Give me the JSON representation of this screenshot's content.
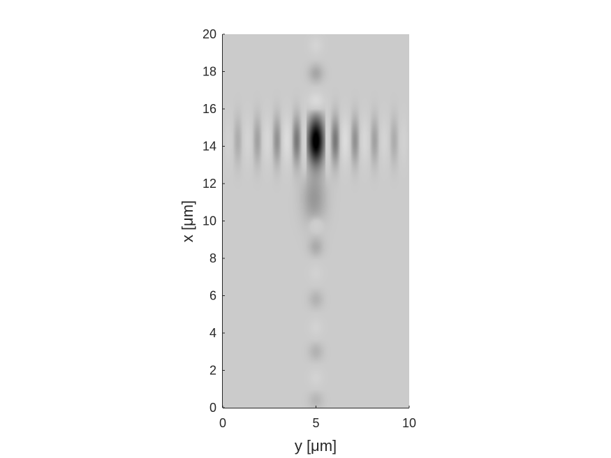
{
  "chart_data": {
    "type": "heatmap",
    "title": "",
    "xlabel": "y [μm]",
    "ylabel": "x [μm]",
    "xlim": [
      0,
      10
    ],
    "ylim": [
      0,
      20
    ],
    "x_ticks": [
      "0",
      "5",
      "10"
    ],
    "y_ticks": [
      "0",
      "2",
      "4",
      "6",
      "8",
      "10",
      "12",
      "14",
      "16",
      "18",
      "20"
    ],
    "colormap": "gray",
    "background_color": "#cbcbcb",
    "features": [
      {
        "y": 5.0,
        "x": 14.3,
        "sy": 0.35,
        "sx": 0.9,
        "value": -1.0
      },
      {
        "y": 4.9,
        "x": 11.2,
        "sy": 0.45,
        "sx": 1.0,
        "value": -0.25
      },
      {
        "y": 5.0,
        "x": 16.4,
        "sy": 0.3,
        "sx": 0.35,
        "value": 0.35
      },
      {
        "y": 5.0,
        "x": 17.9,
        "sy": 0.28,
        "sx": 0.35,
        "value": -0.18
      },
      {
        "y": 5.0,
        "x": 19.4,
        "sy": 0.28,
        "sx": 0.35,
        "value": 0.18
      },
      {
        "y": 5.0,
        "x": 9.8,
        "sy": 0.25,
        "sx": 0.3,
        "value": 0.15
      },
      {
        "y": 5.0,
        "x": 8.6,
        "sy": 0.28,
        "sx": 0.35,
        "value": -0.15
      },
      {
        "y": 5.0,
        "x": 7.2,
        "sy": 0.28,
        "sx": 0.35,
        "value": 0.12
      },
      {
        "y": 5.0,
        "x": 5.8,
        "sy": 0.28,
        "sx": 0.35,
        "value": -0.12
      },
      {
        "y": 5.0,
        "x": 4.3,
        "sy": 0.28,
        "sx": 0.35,
        "value": 0.14
      },
      {
        "y": 5.0,
        "x": 3.0,
        "sy": 0.28,
        "sx": 0.35,
        "value": -0.12
      },
      {
        "y": 5.0,
        "x": 1.6,
        "sy": 0.28,
        "sx": 0.35,
        "value": 0.15
      },
      {
        "y": 5.0,
        "x": 0.4,
        "sy": 0.28,
        "sx": 0.35,
        "value": -0.1
      }
    ],
    "fringe_row": {
      "x": 14.3,
      "sx": 0.9,
      "period": 1.05,
      "amplitude": 0.55,
      "decay": 3.2
    }
  }
}
